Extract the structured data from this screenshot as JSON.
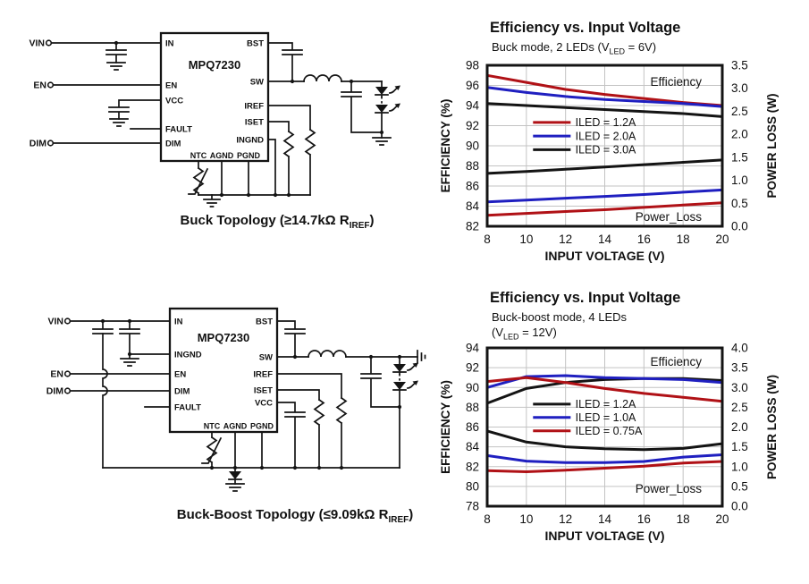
{
  "colors": {
    "red": "#b01116",
    "blue": "#1f1fc0",
    "black": "#141414",
    "grid": "#c3c3c3",
    "frame": "#141414"
  },
  "circuits": {
    "buck": {
      "ic_name": "MPQ7230",
      "terminals": {
        "vin": "VIN",
        "en": "EN",
        "dim": "DIM"
      },
      "pins_left": [
        "IN",
        "EN",
        "VCC",
        "FAULT",
        "DIM"
      ],
      "pins_right": [
        "BST",
        "SW",
        "IREF",
        "ISET",
        "INGND"
      ],
      "pins_bottom": [
        "NTC",
        "AGND",
        "PGND"
      ],
      "caption": {
        "pre": "Buck Topology (≥14.7kΩ R",
        "sub": "IREF",
        "post": ")"
      }
    },
    "buck_boost": {
      "ic_name": "MPQ7230",
      "terminals": {
        "vin": "VIN",
        "en": "EN",
        "dim": "DIM"
      },
      "pins_left": [
        "IN",
        "INGND",
        "EN",
        "DIM",
        "FAULT"
      ],
      "pins_right": [
        "BST",
        "SW",
        "IREF",
        "ISET",
        "VCC"
      ],
      "pins_bottom": [
        "NTC",
        "AGND",
        "PGND"
      ],
      "caption": {
        "pre": "Buck-Boost Topology (≤9.09kΩ R",
        "sub": "IREF",
        "post": ")"
      }
    }
  },
  "chart_data": [
    {
      "type": "line",
      "title": "Efficiency vs. Input Voltage",
      "subtitles": [
        {
          "pre": "Buck mode, 2 LEDs (V",
          "sub": "LED",
          "post": " = 6V)"
        }
      ],
      "xlabel": "INPUT VOLTAGE (V)",
      "ylabel_left": "EFFICIENCY (%)",
      "ylabel_right": "POWER LOSS (W)",
      "x": [
        8,
        10,
        12,
        14,
        16,
        18,
        20
      ],
      "xlim": [
        8,
        20
      ],
      "xtick_step": 2,
      "ylim_left": [
        82,
        98
      ],
      "ytick_step_left": 2,
      "ylim_right": [
        0,
        3.5
      ],
      "ytick_step_right": 0.5,
      "grid": true,
      "legend_position": "inside-left-middle",
      "annotations": {
        "top_right": "Efficiency",
        "bottom_right": "Power_Loss"
      },
      "legend": [
        {
          "label": "ILED = 1.2A",
          "color": "red"
        },
        {
          "label": "ILED = 2.0A",
          "color": "blue"
        },
        {
          "label": "ILED = 3.0A",
          "color": "black"
        }
      ],
      "series": [
        {
          "name": "Efficiency ILED = 1.2A",
          "axis": "left",
          "color": "red",
          "values": [
            97.0,
            96.3,
            95.6,
            95.1,
            94.7,
            94.3,
            94.0
          ]
        },
        {
          "name": "Efficiency ILED = 2.0A",
          "axis": "left",
          "color": "blue",
          "values": [
            95.8,
            95.3,
            94.9,
            94.6,
            94.4,
            94.2,
            93.9
          ]
        },
        {
          "name": "Efficiency ILED = 3.0A",
          "axis": "left",
          "color": "black",
          "values": [
            94.2,
            94.0,
            93.8,
            93.6,
            93.4,
            93.2,
            92.9
          ]
        },
        {
          "name": "Power loss ILED = 3.0A",
          "axis": "right",
          "color": "black",
          "values": [
            1.15,
            1.19,
            1.24,
            1.29,
            1.34,
            1.39,
            1.44
          ]
        },
        {
          "name": "Power loss ILED = 2.0A",
          "axis": "right",
          "color": "blue",
          "values": [
            0.53,
            0.57,
            0.61,
            0.65,
            0.69,
            0.74,
            0.79
          ]
        },
        {
          "name": "Power loss ILED = 1.2A",
          "axis": "right",
          "color": "red",
          "values": [
            0.24,
            0.28,
            0.32,
            0.36,
            0.41,
            0.46,
            0.51
          ]
        }
      ]
    },
    {
      "type": "line",
      "title": "Efficiency vs. Input Voltage",
      "subtitles": [
        {
          "pre": "Buck-boost mode, 4 LEDs",
          "sub": "",
          "post": ""
        },
        {
          "pre": "(V",
          "sub": "LED",
          "post": " = 12V)"
        }
      ],
      "xlabel": "INPUT VOLTAGE (V)",
      "ylabel_left": "EFFICIENCY (%)",
      "ylabel_right": "POWER LOSS (W)",
      "x": [
        8,
        10,
        12,
        14,
        16,
        18,
        20
      ],
      "xlim": [
        8,
        20
      ],
      "xtick_step": 2,
      "ylim_left": [
        78,
        94
      ],
      "ytick_step_left": 2,
      "ylim_right": [
        0,
        4.0
      ],
      "ytick_step_right": 0.5,
      "grid": true,
      "legend_position": "inside-left-middle",
      "annotations": {
        "top_right": "Efficiency",
        "bottom_right": "Power_Loss"
      },
      "legend": [
        {
          "label": "ILED = 1.2A",
          "color": "black"
        },
        {
          "label": "ILED = 1.0A",
          "color": "blue"
        },
        {
          "label": "ILED = 0.75A",
          "color": "red"
        }
      ],
      "series": [
        {
          "name": "Efficiency ILED = 1.2A",
          "axis": "left",
          "color": "black",
          "values": [
            88.4,
            89.9,
            90.5,
            90.8,
            90.9,
            90.9,
            90.7
          ]
        },
        {
          "name": "Efficiency ILED = 1.0A",
          "axis": "left",
          "color": "blue",
          "values": [
            90.0,
            91.1,
            91.2,
            91.0,
            90.9,
            90.8,
            90.5
          ]
        },
        {
          "name": "Efficiency ILED = 0.75A",
          "axis": "left",
          "color": "red",
          "values": [
            90.6,
            91.0,
            90.5,
            89.9,
            89.4,
            89.0,
            88.6
          ]
        },
        {
          "name": "Power loss ILED = 1.2A",
          "axis": "right",
          "color": "black",
          "values": [
            1.9,
            1.62,
            1.5,
            1.45,
            1.43,
            1.46,
            1.58
          ]
        },
        {
          "name": "Power loss ILED = 1.0A",
          "axis": "right",
          "color": "blue",
          "values": [
            1.28,
            1.14,
            1.1,
            1.1,
            1.13,
            1.24,
            1.3
          ]
        },
        {
          "name": "Power loss ILED = 0.75A",
          "axis": "right",
          "color": "red",
          "values": [
            0.9,
            0.87,
            0.91,
            0.96,
            1.01,
            1.09,
            1.13
          ]
        }
      ]
    }
  ]
}
